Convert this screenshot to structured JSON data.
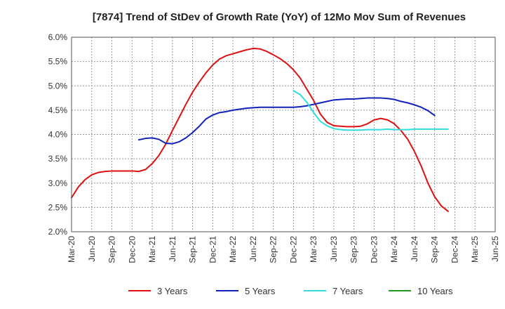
{
  "chart_data": {
    "type": "line",
    "title": "[7874]  Trend of StDev of Growth Rate (YoY) of 12Mo Mov Sum of Revenues",
    "xlabel": "",
    "ylabel": "",
    "ylim": [
      2.0,
      6.0
    ],
    "y_ticks": [
      2.0,
      2.5,
      3.0,
      3.5,
      4.0,
      4.5,
      5.0,
      5.5,
      6.0
    ],
    "y_tick_labels": [
      "2.0%",
      "2.5%",
      "3.0%",
      "3.5%",
      "4.0%",
      "4.5%",
      "5.0%",
      "5.5%",
      "6.0%"
    ],
    "x_tick_labels": [
      "Mar-20",
      "Jun-20",
      "Sep-20",
      "Dec-20",
      "Mar-21",
      "Jun-21",
      "Sep-21",
      "Dec-21",
      "Mar-22",
      "Jun-22",
      "Sep-22",
      "Dec-22",
      "Mar-23",
      "Jun-23",
      "Sep-23",
      "Dec-23",
      "Mar-24",
      "Jun-24",
      "Sep-24",
      "Dec-24",
      "Mar-25",
      "Jun-25"
    ],
    "grid": true,
    "legend_position": "bottom",
    "series": [
      {
        "name": "3 Years",
        "color": "#dd1111",
        "start_index": 0,
        "values": [
          2.7,
          2.92,
          3.07,
          3.17,
          3.22,
          3.24,
          3.25,
          3.25,
          3.25,
          3.25,
          3.24,
          3.28,
          3.4,
          3.57,
          3.8,
          4.08,
          4.35,
          4.62,
          4.87,
          5.08,
          5.27,
          5.43,
          5.55,
          5.62,
          5.66,
          5.7,
          5.74,
          5.77,
          5.76,
          5.71,
          5.64,
          5.56,
          5.46,
          5.33,
          5.16,
          4.93,
          4.7,
          4.42,
          4.25,
          4.18,
          4.17,
          4.16,
          4.16,
          4.17,
          4.22,
          4.3,
          4.33,
          4.3,
          4.22,
          4.08,
          3.9,
          3.65,
          3.35,
          3.0,
          2.72,
          2.53,
          2.42
        ]
      },
      {
        "name": "5 Years",
        "color": "#1122bb",
        "start_index": 10,
        "values": [
          3.89,
          3.92,
          3.93,
          3.9,
          3.82,
          3.81,
          3.85,
          3.93,
          4.04,
          4.17,
          4.32,
          4.4,
          4.45,
          4.47,
          4.5,
          4.52,
          4.54,
          4.55,
          4.56,
          4.56,
          4.56,
          4.56,
          4.56,
          4.56,
          4.57,
          4.59,
          4.62,
          4.65,
          4.68,
          4.71,
          4.72,
          4.73,
          4.73,
          4.74,
          4.75,
          4.75,
          4.75,
          4.74,
          4.72,
          4.68,
          4.65,
          4.61,
          4.56,
          4.49,
          4.39
        ]
      },
      {
        "name": "7 Years",
        "color": "#33dddd",
        "start_index": 33,
        "values": [
          4.9,
          4.82,
          4.66,
          4.45,
          4.27,
          4.18,
          4.12,
          4.1,
          4.09,
          4.09,
          4.09,
          4.1,
          4.1,
          4.1,
          4.11,
          4.1,
          4.1,
          4.1,
          4.11,
          4.11,
          4.11,
          4.11,
          4.11,
          4.11
        ]
      },
      {
        "name": "10 Years",
        "color": "#229922",
        "start_index": 0,
        "values": []
      }
    ]
  }
}
